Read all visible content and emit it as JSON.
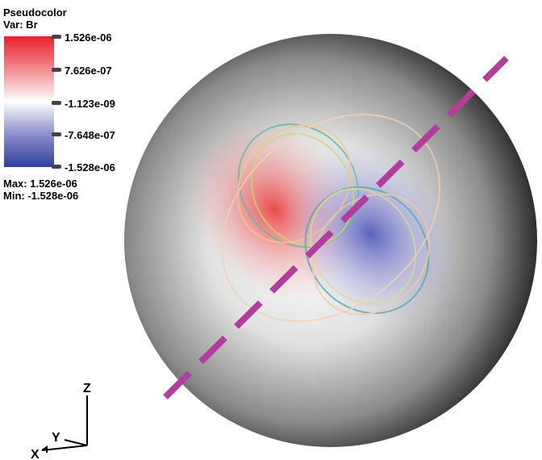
{
  "legend": {
    "title": "Pseudocolor",
    "variable": "Var: Br",
    "ticks": [
      "1.526e-06",
      "7.626e-07",
      "-1.123e-09",
      "-7.648e-07",
      "-1.528e-06"
    ],
    "max": "Max: 1.526e-06",
    "min": "Min: -1.528e-06"
  },
  "axes": {
    "z": "Z",
    "y": "Y",
    "x": "X"
  }
}
